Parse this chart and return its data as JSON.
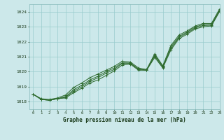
{
  "title": "Graphe pression niveau de la mer (hPa)",
  "bg_color": "#cce8ea",
  "grid_color": "#99cccc",
  "line_color": "#2d6a2d",
  "xlim": [
    -0.5,
    23
  ],
  "ylim": [
    1017.5,
    1024.5
  ],
  "yticks": [
    1018,
    1019,
    1020,
    1021,
    1022,
    1023,
    1024
  ],
  "xticks": [
    0,
    1,
    2,
    3,
    4,
    5,
    6,
    7,
    8,
    9,
    10,
    11,
    12,
    13,
    14,
    15,
    16,
    17,
    18,
    19,
    20,
    21,
    22,
    23
  ],
  "series": [
    [
      1018.5,
      1018.15,
      1018.1,
      1018.2,
      1018.25,
      1018.6,
      1018.9,
      1019.25,
      1019.45,
      1019.75,
      1020.05,
      1020.45,
      1020.5,
      1020.1,
      1020.1,
      1020.95,
      1020.25,
      1021.45,
      1022.2,
      1022.5,
      1022.85,
      1023.0,
      1023.05,
      1024.0
    ],
    [
      1018.5,
      1018.15,
      1018.1,
      1018.2,
      1018.3,
      1018.7,
      1019.0,
      1019.35,
      1019.6,
      1019.9,
      1020.15,
      1020.55,
      1020.55,
      1020.15,
      1020.1,
      1021.05,
      1020.3,
      1021.55,
      1022.28,
      1022.58,
      1022.92,
      1023.08,
      1023.1,
      1024.05
    ],
    [
      1018.5,
      1018.15,
      1018.1,
      1018.2,
      1018.35,
      1018.8,
      1019.1,
      1019.45,
      1019.7,
      1020.0,
      1020.25,
      1020.6,
      1020.58,
      1020.18,
      1020.1,
      1021.1,
      1020.35,
      1021.65,
      1022.35,
      1022.65,
      1022.98,
      1023.15,
      1023.15,
      1024.1
    ],
    [
      1018.5,
      1018.2,
      1018.15,
      1018.25,
      1018.45,
      1018.95,
      1019.25,
      1019.6,
      1019.85,
      1020.1,
      1020.35,
      1020.7,
      1020.65,
      1020.25,
      1020.15,
      1021.2,
      1020.4,
      1021.75,
      1022.45,
      1022.72,
      1023.05,
      1023.22,
      1023.22,
      1024.18
    ]
  ]
}
